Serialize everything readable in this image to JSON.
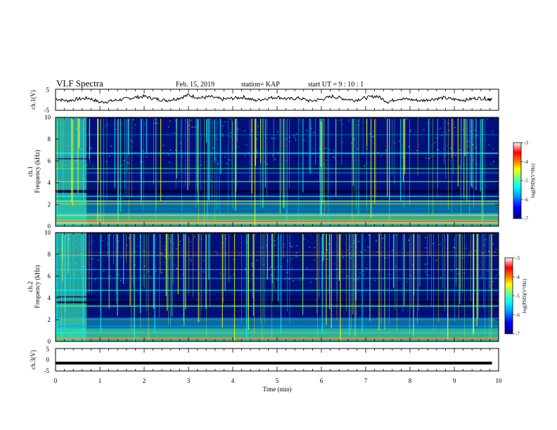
{
  "header": {
    "title": "VLF Spectra",
    "date": "Feb. 15, 2019",
    "station": "station= KAP",
    "start": "start  UT =   9 : 10 : 1"
  },
  "colors": {
    "spectrogram_scale": [
      "#000080",
      "#0000ff",
      "#00a0ff",
      "#00ffff",
      "#80ff80",
      "#ffff00",
      "#ff8000",
      "#ff0000",
      "#ffffff"
    ]
  },
  "chart_data": [
    {
      "type": "line",
      "name": "ch1-waveform",
      "ylabel": "ch.1(V)",
      "ylim": [
        -5,
        5
      ],
      "yticks": [
        "5",
        "-5"
      ],
      "xlim": [
        0,
        10
      ],
      "x": [
        0,
        0.25,
        0.5,
        0.75,
        1,
        1.25,
        1.5,
        1.75,
        2,
        2.25,
        2.5,
        2.75,
        3,
        3.25,
        3.5,
        3.75,
        4,
        4.25,
        4.5,
        4.75,
        5,
        5.25,
        5.5,
        5.75,
        6,
        6.25,
        6.5,
        6.75,
        7,
        7.25,
        7.5,
        7.75,
        8,
        8.25,
        8.5,
        8.75,
        9,
        9.25,
        9.5,
        9.75,
        9.85
      ],
      "y": [
        0.5,
        -0.5,
        0.3,
        0.8,
        -1.2,
        -0.6,
        0.2,
        1.0,
        1.6,
        0.4,
        -0.3,
        0.6,
        2.2,
        0.9,
        1.4,
        0.2,
        0.7,
        1.2,
        -0.4,
        0.6,
        1.3,
        0.3,
        0.8,
        -0.6,
        0.2,
        1.6,
        0.5,
        -0.2,
        0.9,
        1.8,
        -1.0,
        0.6,
        0.1,
        -0.4,
        0.3,
        0.9,
        0.2,
        -0.1,
        0.8,
        0.5,
        0.2
      ]
    },
    {
      "type": "heatmap",
      "name": "ch1-spectrogram",
      "ylabel_top": "ch.1",
      "ylabel": "Frequency (kHz)",
      "ylim": [
        0,
        10
      ],
      "yticks": [
        "0",
        "2",
        "4",
        "6",
        "8",
        "10"
      ],
      "xlim": [
        0,
        10
      ],
      "zlabel": "log(PSD)(V²/Hz)",
      "zlim": [
        -7,
        -3
      ],
      "zticks": [
        "-3",
        "-4",
        "-5",
        "-6",
        "-7"
      ]
    },
    {
      "type": "heatmap",
      "name": "ch2-spectrogram",
      "ylabel_top": "ch.2",
      "ylabel": "Frequency (kHz)",
      "ylim": [
        0,
        10
      ],
      "yticks": [
        "0",
        "2",
        "4",
        "6",
        "8",
        "10"
      ],
      "xlim": [
        0,
        10
      ],
      "zlabel": "log(PSD)(V²/Hz)",
      "zlim": [
        -7,
        -3
      ],
      "zticks": [
        "-3",
        "-4",
        "-5",
        "-6",
        "-7"
      ]
    },
    {
      "type": "line",
      "name": "ch3-waveform",
      "ylabel": "ch.3(V)",
      "ylim": [
        -5,
        5
      ],
      "yticks": [
        "5",
        "0",
        "-5"
      ],
      "xlim": [
        0,
        10
      ],
      "x": [
        0,
        9.85
      ],
      "y": [
        -1.5,
        -1.5
      ],
      "xlabel": "Time  (min)",
      "xticks": [
        "0",
        "1",
        "2",
        "3",
        "4",
        "5",
        "6",
        "7",
        "8",
        "9",
        "10"
      ]
    }
  ]
}
